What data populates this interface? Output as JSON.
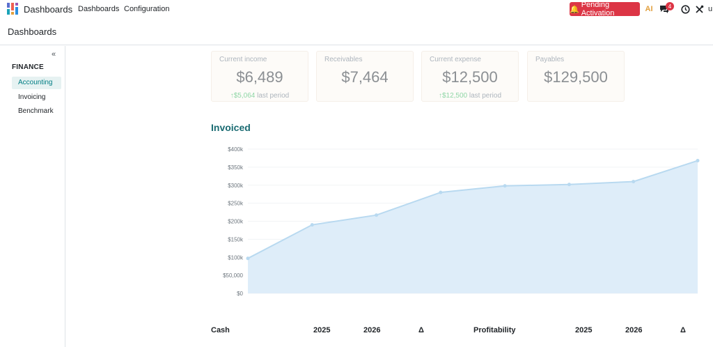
{
  "navbar": {
    "app_name": "Dashboards",
    "menu": [
      "Dashboards",
      "Configuration"
    ],
    "pending_label": "Pending Activation",
    "ai_label": "AI",
    "chat_badge": "4",
    "user_initial": "u",
    "icons": [
      "dashboards-app-icon",
      "bell-icon",
      "ai-icon",
      "chat-icon",
      "clock-icon",
      "tools-icon"
    ],
    "colors": {
      "pending": "#dc3545",
      "accent": "#017e84"
    }
  },
  "breadcrumb": "Dashboards",
  "sidebar": {
    "collapse_label": "«",
    "section": "FINANCE",
    "items": [
      {
        "label": "Accounting",
        "active": true
      },
      {
        "label": "Invoicing",
        "active": false
      },
      {
        "label": "Benchmark",
        "active": false
      }
    ]
  },
  "kpis": [
    {
      "label": "Current income",
      "value": "$6,489",
      "trend": "$5,064",
      "trend_suffix": "last period"
    },
    {
      "label": "Receivables",
      "value": "$7,464"
    },
    {
      "label": "Current expense",
      "value": "$12,500",
      "trend": "$12,500",
      "trend_suffix": "last period"
    },
    {
      "label": "Payables",
      "value": "$129,500"
    }
  ],
  "chart": {
    "title": "Invoiced"
  },
  "chart_data": {
    "type": "area",
    "title": "",
    "xlabel": "",
    "ylabel": "",
    "x": [
      1,
      2,
      3,
      4,
      5,
      6,
      7,
      8
    ],
    "series": [
      {
        "values": [
          97000,
          190000,
          217000,
          280000,
          298000,
          302000,
          310000,
          368000
        ]
      }
    ],
    "yticks": [
      "$0",
      "$50,000",
      "$100k",
      "$150k",
      "$200k",
      "$250k",
      "$300k",
      "$350k",
      "$400k"
    ],
    "ylim": [
      0,
      400000
    ],
    "grid": true,
    "colors": {
      "line": "#b8d9f0",
      "fill": "#deedf9"
    }
  },
  "tables": {
    "left": {
      "title": "Cash",
      "cols": [
        "2025",
        "2026",
        "Δ"
      ]
    },
    "right": {
      "title": "Profitability",
      "cols": [
        "2025",
        "2026",
        "Δ"
      ]
    }
  }
}
